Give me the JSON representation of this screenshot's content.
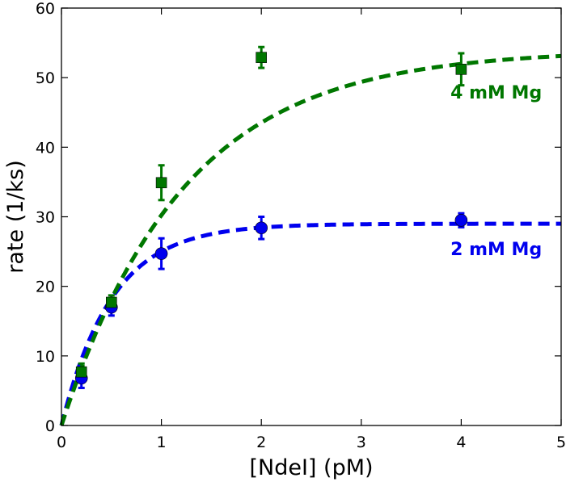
{
  "chart_data": {
    "type": "scatter",
    "title": "",
    "xlabel": "[NdeI] (pM)",
    "ylabel": "rate (1/ks)",
    "xlim": [
      0,
      5
    ],
    "ylim": [
      0,
      60
    ],
    "x_ticks": [
      0,
      1,
      2,
      3,
      4,
      5
    ],
    "y_ticks": [
      0,
      10,
      20,
      30,
      40,
      50,
      60
    ],
    "x_tick_labels": [
      "0",
      "1",
      "2",
      "3",
      "4",
      "5"
    ],
    "y_tick_labels": [
      "0",
      "10",
      "20",
      "30",
      "40",
      "50",
      "60"
    ],
    "grid": false,
    "legend": "none",
    "series": [
      {
        "name": "2 mM Mg",
        "color": "#0000ee",
        "marker": "circle",
        "x": [
          0.2,
          0.5,
          1,
          2,
          4
        ],
        "y": [
          6.8,
          17.0,
          24.7,
          28.4,
          29.5
        ],
        "err": [
          1.4,
          1.2,
          2.2,
          1.6,
          1.0
        ],
        "fit": {
          "style": "dashed",
          "vmax": 29,
          "k": 1.98
        }
      },
      {
        "name": "4 mM Mg",
        "color": "#007700",
        "marker": "square",
        "x": [
          0.2,
          0.5,
          1,
          2,
          4
        ],
        "y": [
          7.7,
          17.7,
          34.9,
          52.9,
          51.2
        ],
        "err": [
          1.2,
          1.0,
          2.5,
          1.5,
          2.3
        ],
        "fit": {
          "style": "dashed",
          "vmax": 54,
          "k": 0.82
        }
      }
    ],
    "annotations": [
      {
        "text": "4 mM Mg",
        "series": "4 mM Mg",
        "x": 4.35,
        "y": 47
      },
      {
        "text": "2 mM Mg",
        "series": "2 mM Mg",
        "x": 4.35,
        "y": 24.5
      }
    ]
  }
}
